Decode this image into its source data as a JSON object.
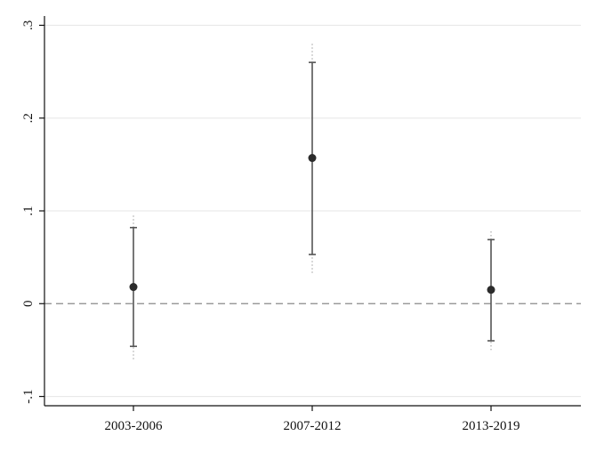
{
  "chart_data": {
    "type": "scatter",
    "categories": [
      "2003-2006",
      "2007-2012",
      "2013-2019"
    ],
    "series": [
      {
        "estimate": [
          0.018,
          0.157,
          0.015
        ],
        "ci95": [
          [
            -0.046,
            0.082
          ],
          [
            0.053,
            0.26
          ],
          [
            -0.04,
            0.069
          ]
        ],
        "ci99": [
          [
            -0.06,
            0.095
          ],
          [
            0.033,
            0.28
          ],
          [
            -0.05,
            0.078
          ]
        ]
      }
    ],
    "yticks": [
      -0.1,
      0,
      0.1,
      0.2,
      0.3
    ],
    "ytick_labels": [
      "-.1",
      "0",
      ".1",
      ".2",
      ".3"
    ],
    "ylim": [
      -0.11,
      0.31
    ],
    "reference_line": 0,
    "grid": true,
    "legend": "none",
    "xlabel": "",
    "ylabel": "",
    "title": "",
    "colors": {
      "marker": "#2b2b2b",
      "ci95": "#555555",
      "ci99": "#9a9a9a",
      "refline": "#8a8a8a",
      "grid": "#e6e6e6",
      "axis": "#111111"
    }
  }
}
